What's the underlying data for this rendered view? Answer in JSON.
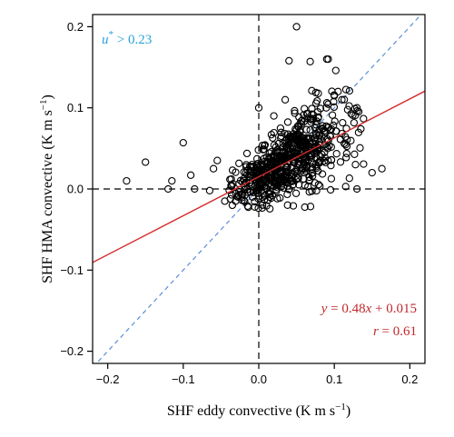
{
  "chart_data": {
    "type": "scatter",
    "xlabel": "SHF eddy convective (K m s",
    "xlabel_sup": "−1",
    "xlabel_close": ")",
    "ylabel": "SHF HMA convective (K m s",
    "ylabel_sup": "−1",
    "ylabel_close": ")",
    "xlim": [
      -0.22,
      0.22
    ],
    "ylim": [
      -0.215,
      0.215
    ],
    "x_ticks": [
      -0.2,
      -0.1,
      0.0,
      0.1,
      0.2
    ],
    "y_ticks": [
      -0.2,
      -0.1,
      0.0,
      0.1,
      0.2
    ],
    "x_tick_labels": [
      "−0.2",
      "−0.1",
      "0.0",
      "0.1",
      "0.2"
    ],
    "y_tick_labels": [
      "−0.2",
      "−0.1",
      "0.0",
      "0.1",
      "0.2"
    ],
    "grid": false,
    "colors": {
      "points": "#000000",
      "fit_line": "#d42a2a",
      "one_to_one": "#5b8fd6",
      "zero_lines": "#000000",
      "ustar_text": "#29a0d8",
      "eq_text": "#c0282d"
    },
    "annotations": {
      "ustar_var": "u",
      "ustar_sup": "*",
      "ustar_rest": " > 0.23",
      "eq_y": "y",
      "eq_mid": " = 0.48",
      "eq_x": "x",
      "eq_rest": " + 0.015",
      "r_var": "r",
      "r_rest": " = 0.61"
    },
    "fit": {
      "slope": 0.48,
      "intercept": 0.015,
      "r": 0.61
    },
    "one_to_one": {
      "slope": 1,
      "intercept": 0
    },
    "outliers": [
      [
        -0.175,
        0.01
      ],
      [
        -0.15,
        0.033
      ],
      [
        -0.1,
        0.057
      ],
      [
        -0.12,
        0.0
      ],
      [
        -0.115,
        0.01
      ],
      [
        -0.09,
        0.017
      ],
      [
        -0.085,
        0.0
      ],
      [
        -0.065,
        -0.002
      ],
      [
        -0.06,
        0.025
      ],
      [
        -0.055,
        0.035
      ],
      [
        -0.045,
        -0.015
      ],
      [
        -0.035,
        -0.02
      ],
      [
        0.05,
        0.2
      ],
      [
        0.04,
        0.158
      ],
      [
        0.068,
        0.157
      ],
      [
        0.09,
        0.16
      ],
      [
        0.092,
        0.16
      ],
      [
        0.0,
        0.1
      ],
      [
        0.035,
        0.11
      ],
      [
        0.078,
        0.095
      ],
      [
        0.1,
        0.115
      ],
      [
        0.105,
        0.12
      ],
      [
        0.11,
        0.11
      ],
      [
        0.13,
        0.1
      ],
      [
        0.115,
        0.003
      ],
      [
        0.128,
        0.03
      ],
      [
        0.163,
        0.025
      ],
      [
        0.13,
        0.0
      ],
      [
        0.02,
        0.09
      ],
      [
        0.06,
        0.02
      ],
      [
        0.15,
        0.02
      ]
    ],
    "cluster": {
      "count": 640,
      "x_mean": 0.04,
      "x_sd": 0.042,
      "fit_slope": 0.48,
      "fit_intercept": 0.015,
      "residual_sd": 0.024,
      "x_min": -0.04,
      "x_max": 0.14,
      "y_min": -0.025
    }
  }
}
